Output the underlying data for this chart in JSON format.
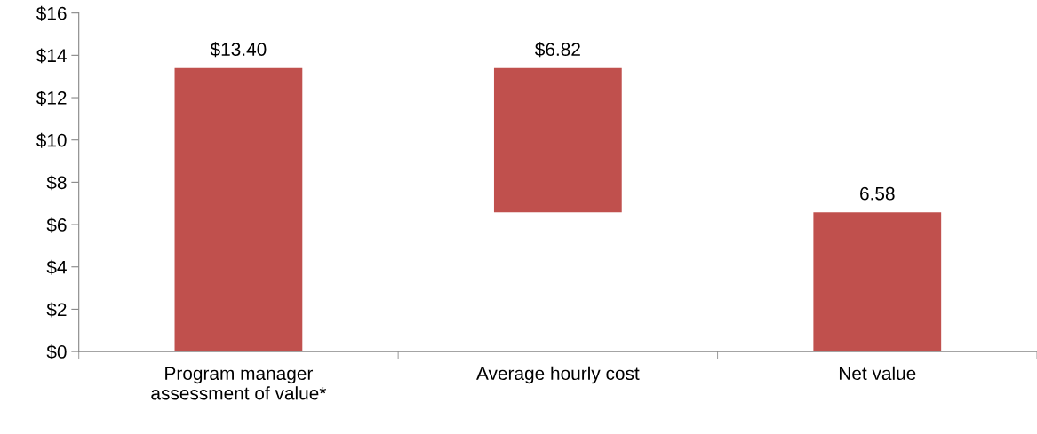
{
  "chart_data": {
    "type": "bar",
    "categories": [
      "Program manager\nassessment of value*",
      "Average hourly cost",
      "Net value"
    ],
    "values": [
      13.4,
      6.82,
      6.58
    ],
    "base": [
      0,
      6.58,
      0
    ],
    "color": "#c0504d",
    "value_labels": [
      "$13.40",
      "$6.82",
      "6.58"
    ],
    "ylim": [
      0,
      16
    ],
    "yticks": [
      {
        "value": 0,
        "label": "$0"
      },
      {
        "value": 2,
        "label": "$2"
      },
      {
        "value": 4,
        "label": "$4"
      },
      {
        "value": 6,
        "label": "$6"
      },
      {
        "value": 8,
        "label": "$8"
      },
      {
        "value": 10,
        "label": "$10"
      },
      {
        "value": 12,
        "label": "$12"
      },
      {
        "value": 14,
        "label": "$14"
      },
      {
        "value": 16,
        "label": "$16"
      }
    ],
    "grid": false,
    "legend": false
  }
}
